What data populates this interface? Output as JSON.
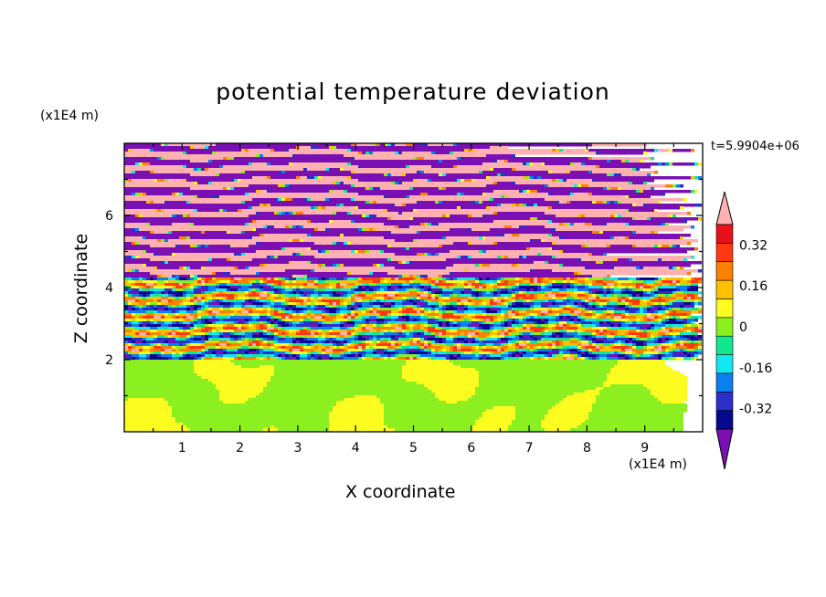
{
  "chart_data": {
    "type": "heatmap",
    "title": "potential temperature deviation",
    "xlabel": "X coordinate",
    "ylabel": "Z coordinate",
    "x_multiplier": "(x1E4 m)",
    "y_multiplier": "(x1E4 m)",
    "time_label": "t=5.9904e+06",
    "xlim": [
      0,
      10
    ],
    "ylim": [
      0,
      8
    ],
    "x_ticks": [
      "1",
      "2",
      "3",
      "4",
      "5",
      "6",
      "7",
      "8",
      "9"
    ],
    "y_ticks": [
      "2",
      "4",
      "6"
    ],
    "x_tick_values": [
      1,
      2,
      3,
      4,
      5,
      6,
      7,
      8,
      9
    ],
    "y_tick_values": [
      2,
      4,
      6
    ],
    "colorbar": {
      "levels": [
        -0.48,
        -0.4,
        -0.32,
        -0.24,
        -0.16,
        -0.08,
        0,
        0.08,
        0.16,
        0.24,
        0.32,
        0.4,
        0.48
      ],
      "colors": [
        "#7a0fb4",
        "#08078f",
        "#2d2fc9",
        "#0a7ff0",
        "#11e8f0",
        "#10e890",
        "#8cf020",
        "#fcfc20",
        "#ffc000",
        "#ff8000",
        "#ff3a10",
        "#e8101a",
        "#ffb0b0"
      ],
      "tick_labels": [
        "0.32",
        "0.16",
        "0",
        "-0.16",
        "-0.32"
      ],
      "tick_values": [
        0.32,
        0.16,
        0,
        -0.16,
        -0.32
      ],
      "extend": "both"
    },
    "field_description_regions": {
      "lower_layer_z": [
        0,
        2
      ],
      "lower_layer_values": [
        0.04,
        0.1
      ],
      "mixing_layer_z": [
        2,
        4.3
      ],
      "upper_banded_layer_z": [
        4.3,
        8
      ],
      "upper_banded_values": [
        -0.5,
        0.5
      ]
    }
  }
}
